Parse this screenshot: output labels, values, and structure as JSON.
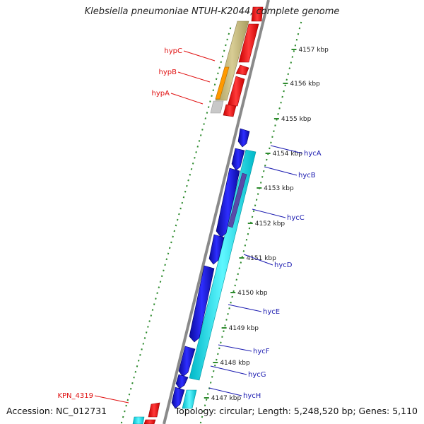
{
  "title": "Klebsiella pneumoniae NTUH-K2044, complete genome",
  "accession": "Accession: NC_012731",
  "topology": "Topology: circular; Length: 5,248,520 bp; Genes: 5,110",
  "scale_ticks": [
    "4147 kbp",
    "4148 kbp",
    "4149 kbp",
    "4150 kbp",
    "4151 kbp",
    "4152 kbp",
    "4153 kbp",
    "4154 kbp",
    "4155 kbp",
    "4156 kbp",
    "4157 kbp"
  ],
  "hyc_labels": [
    "hycA",
    "hycB",
    "hycC",
    "hycD",
    "hycE",
    "hycF",
    "hycG",
    "hycH"
  ],
  "hyp_labels": [
    "hypC",
    "hypB",
    "hypA"
  ],
  "other_labels": [
    "KPN_4319"
  ],
  "colors": {
    "hyc_genes": "#1a1adf",
    "hyc_labels": "#1a1ab0",
    "hyp_labels": "#e01010",
    "red_genes": "#ff1010",
    "cyan_features": "#00e5ee",
    "olive_features": "#c4b87a",
    "orange_feature": "#ff9900",
    "gc_ticks": "#2e8b2e",
    "backbone": "#888888"
  }
}
